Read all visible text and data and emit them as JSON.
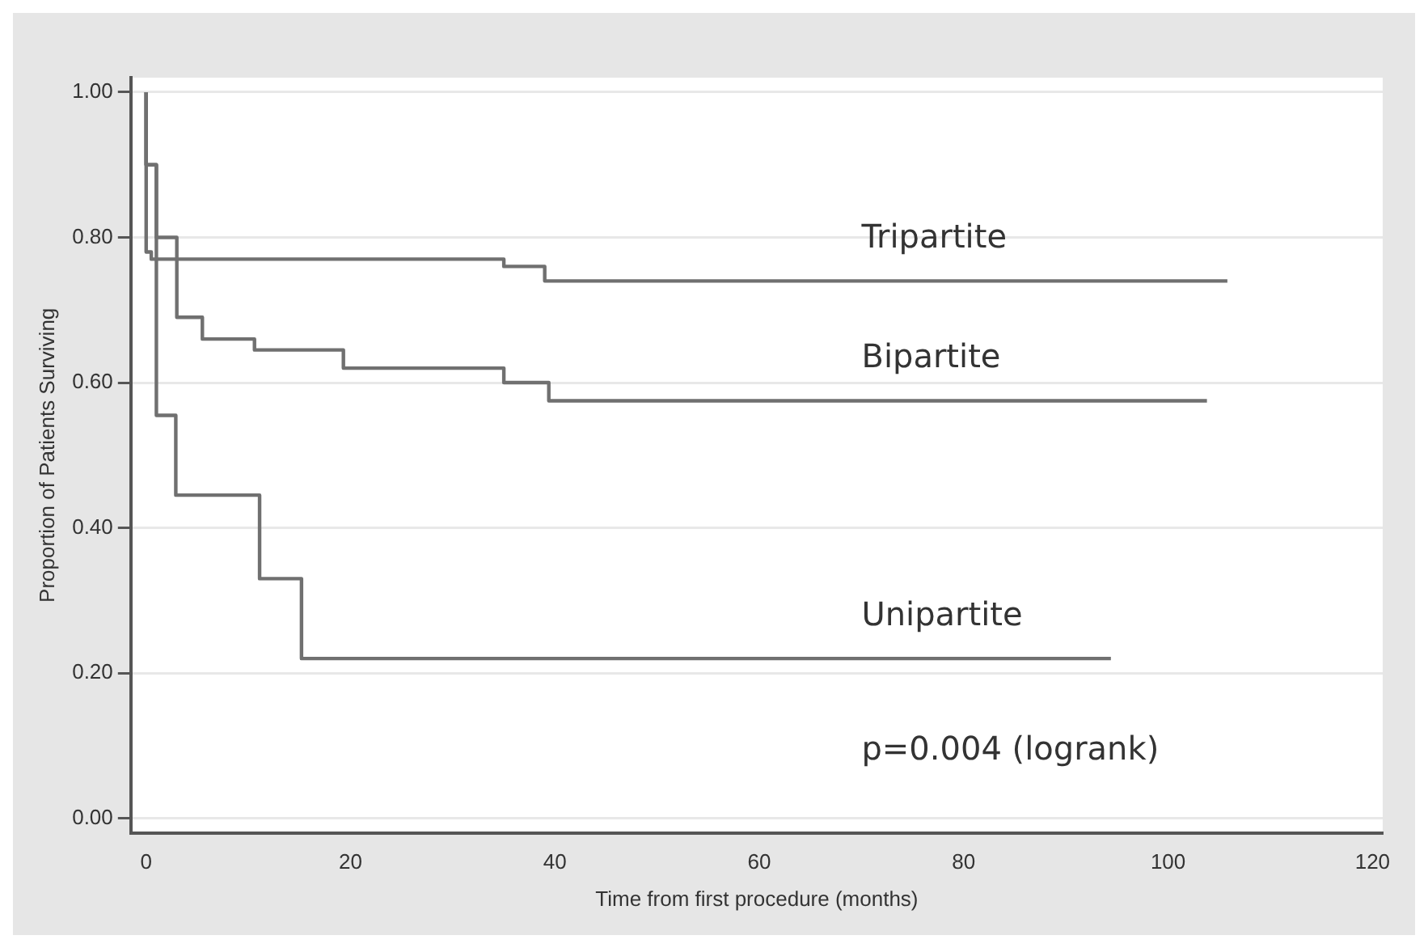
{
  "chart_data": {
    "type": "step",
    "xlabel": "Time from first procedure (months)",
    "ylabel": "Proportion of Patients Surviving",
    "series": [
      {
        "name": "Tripartite",
        "color": "#707070",
        "x": [
          0,
          0.5,
          35,
          39,
          55.5,
          105.8
        ],
        "values": [
          1.0,
          0.78,
          0.77,
          0.76,
          0.74,
          0.74
        ]
      },
      {
        "name": "Bipartite",
        "color": "#707070",
        "x": [
          0,
          1,
          3,
          5.5,
          10.6,
          19.3,
          35,
          39.4,
          53.5,
          103.8
        ],
        "values": [
          1.0,
          0.9,
          0.8,
          0.69,
          0.66,
          0.645,
          0.62,
          0.6,
          0.575,
          0.575
        ]
      },
      {
        "name": "Unipartite",
        "color": "#707070",
        "x": [
          0,
          1,
          2.9,
          11.1,
          15.2,
          27.8,
          94.4
        ],
        "values": [
          1.0,
          0.9,
          0.555,
          0.445,
          0.33,
          0.22,
          0.22
        ]
      }
    ],
    "xlim": [
      -1.5,
      121
    ],
    "xticks": [
      0,
      20,
      40,
      60,
      80,
      100,
      120
    ],
    "ylim": [
      -0.02,
      1.02
    ],
    "yticks": [
      {
        "value": 0,
        "label": "0.00"
      },
      {
        "value": 0.2,
        "label": "0.20"
      },
      {
        "value": 0.4,
        "label": "0.40"
      },
      {
        "value": 0.6,
        "label": "0.60"
      },
      {
        "value": 0.8,
        "label": "0.80"
      },
      {
        "value": 1,
        "label": "1.00"
      }
    ],
    "grid": "y",
    "legend": false,
    "marker": "none",
    "line_style": "solid",
    "annotations": [
      "p=0.004 (logrank)"
    ]
  }
}
